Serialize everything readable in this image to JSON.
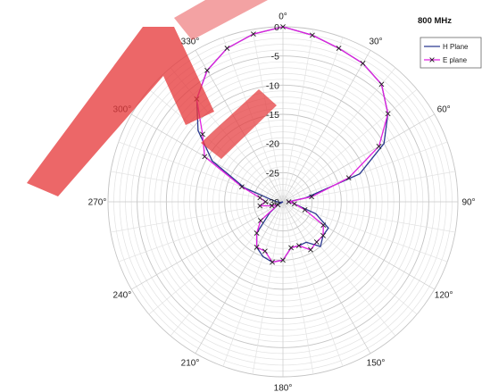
{
  "chart_data": {
    "type": "polar-line",
    "title": "800 MHz",
    "angle_labels": [
      "0°",
      "30°",
      "60°",
      "90°",
      "120°",
      "150°",
      "180°",
      "210°",
      "240°",
      "270°",
      "300°",
      "330°"
    ],
    "radial_ticks": [
      0,
      -5,
      -10,
      -15,
      -20,
      -25,
      -30
    ],
    "radial_tick_labels": [
      "0",
      "-5",
      "-10",
      "-15",
      "-20",
      "-25",
      "-30"
    ],
    "rlim": [
      -30,
      0
    ],
    "angle_grid_step_deg": 10,
    "grid": true,
    "legend_position": "top-right",
    "series": [
      {
        "name": "H Plane",
        "color": "#2b3990",
        "marker": "none",
        "angles_deg": [
          0,
          10,
          20,
          30,
          40,
          50,
          60,
          70,
          80,
          90,
          100,
          110,
          120,
          130,
          140,
          150,
          160,
          170,
          180,
          190,
          200,
          210,
          220,
          230,
          240,
          250,
          260,
          270,
          280,
          290,
          300,
          310,
          320,
          330,
          340,
          350
        ],
        "values_db": [
          0,
          -1,
          -2,
          -2.6,
          -3.7,
          -6.5,
          -10,
          -16,
          -26,
          -29,
          -28,
          -24,
          -21,
          -21,
          -20,
          -22,
          -22,
          -22,
          -20,
          -19.5,
          -20,
          -21,
          -23,
          -27,
          -29,
          -30,
          -29.5,
          -29,
          -28,
          -23,
          -16,
          -11,
          -7,
          -4,
          -2,
          -0.8
        ]
      },
      {
        "name": "E plane",
        "color": "#e020e0",
        "marker": "x",
        "angles_deg": [
          0,
          10,
          20,
          30,
          40,
          50,
          60,
          70,
          80,
          90,
          100,
          110,
          120,
          130,
          140,
          150,
          160,
          170,
          180,
          190,
          200,
          210,
          220,
          230,
          240,
          250,
          260,
          270,
          280,
          290,
          300,
          310,
          320,
          330,
          340,
          350
        ],
        "values_db": [
          0,
          -1,
          -2,
          -2.6,
          -3.7,
          -6.5,
          -11,
          -18,
          -25,
          -29,
          -28,
          -26,
          -22,
          -21,
          -21,
          -20.5,
          -22,
          -22,
          -20,
          -19.5,
          -21,
          -21,
          -23,
          -25,
          -29,
          -28,
          -26,
          -27,
          -26,
          -22.5,
          -14.5,
          -12,
          -7,
          -4,
          -2,
          -0.8
        ]
      }
    ]
  }
}
